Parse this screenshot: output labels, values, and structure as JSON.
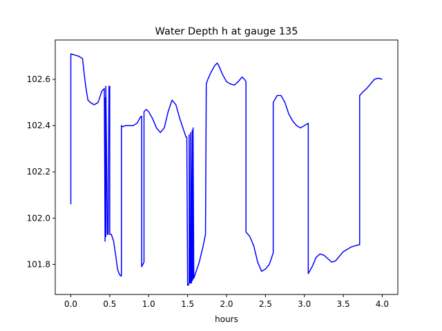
{
  "chart_data": {
    "type": "line",
    "title": "Water Depth h at gauge 135",
    "xlabel": "hours",
    "ylabel": "",
    "xlim": [
      -0.2,
      4.2
    ],
    "ylim": [
      101.67,
      102.77
    ],
    "xticks": [
      0.0,
      0.5,
      1.0,
      1.5,
      2.0,
      2.5,
      3.0,
      3.5,
      4.0
    ],
    "xtick_labels": [
      "0.0",
      "0.5",
      "1.0",
      "1.5",
      "2.0",
      "2.5",
      "3.0",
      "3.5",
      "4.0"
    ],
    "yticks": [
      101.8,
      102.0,
      102.2,
      102.4,
      102.6
    ],
    "ytick_labels": [
      "101.8",
      "102.0",
      "102.2",
      "102.4",
      "102.6"
    ],
    "grid": false,
    "series": [
      {
        "color": "#0000ff",
        "x": [
          0.0,
          0.0,
          0.05,
          0.1,
          0.15,
          0.18,
          0.2,
          0.22,
          0.25,
          0.3,
          0.35,
          0.4,
          0.43,
          0.44,
          0.44,
          0.45,
          0.45,
          0.47,
          0.48,
          0.49,
          0.5,
          0.5,
          0.52,
          0.55,
          0.58,
          0.6,
          0.62,
          0.64,
          0.65,
          0.65,
          0.67,
          0.7,
          0.75,
          0.8,
          0.85,
          0.9,
          0.91,
          0.91,
          0.94,
          0.94,
          0.97,
          1.0,
          1.05,
          1.1,
          1.15,
          1.2,
          1.25,
          1.3,
          1.35,
          1.4,
          1.45,
          1.48,
          1.49,
          1.5,
          1.51,
          1.52,
          1.52,
          1.53,
          1.54,
          1.54,
          1.55,
          1.55,
          1.56,
          1.56,
          1.57,
          1.57,
          1.58,
          1.6,
          1.65,
          1.7,
          1.73,
          1.74,
          1.76,
          1.8,
          1.85,
          1.88,
          1.9,
          1.95,
          2.0,
          2.05,
          2.1,
          2.15,
          2.2,
          2.23,
          2.25,
          2.25,
          2.3,
          2.35,
          2.4,
          2.45,
          2.5,
          2.55,
          2.6,
          2.6,
          2.65,
          2.7,
          2.75,
          2.8,
          2.85,
          2.9,
          2.95,
          3.0,
          3.05,
          3.05,
          3.1,
          3.15,
          3.2,
          3.25,
          3.3,
          3.35,
          3.4,
          3.45,
          3.5,
          3.55,
          3.6,
          3.65,
          3.7,
          3.71,
          3.71,
          3.75,
          3.8,
          3.85,
          3.9,
          3.95,
          4.0
        ],
        "y": [
          102.06,
          102.71,
          102.705,
          102.7,
          102.69,
          102.6,
          102.55,
          102.51,
          102.5,
          102.49,
          102.5,
          102.55,
          102.56,
          101.9,
          102.52,
          101.92,
          102.57,
          101.93,
          101.93,
          102.57,
          102.57,
          101.93,
          101.93,
          101.9,
          101.83,
          101.78,
          101.76,
          101.75,
          101.75,
          102.4,
          102.395,
          102.4,
          102.4,
          102.4,
          102.41,
          102.44,
          102.44,
          101.79,
          101.81,
          102.46,
          102.47,
          102.46,
          102.43,
          102.39,
          102.37,
          102.39,
          102.46,
          102.51,
          102.49,
          102.43,
          102.38,
          102.35,
          102.35,
          101.71,
          101.71,
          101.72,
          102.36,
          101.72,
          101.72,
          102.37,
          101.72,
          101.72,
          102.38,
          101.73,
          101.74,
          102.39,
          101.74,
          101.76,
          101.81,
          101.88,
          101.93,
          102.58,
          102.6,
          102.63,
          102.66,
          102.67,
          102.66,
          102.62,
          102.59,
          102.58,
          102.575,
          102.59,
          102.61,
          102.6,
          102.59,
          101.94,
          101.92,
          101.88,
          101.81,
          101.77,
          101.78,
          101.8,
          101.85,
          102.5,
          102.53,
          102.53,
          102.5,
          102.45,
          102.42,
          102.4,
          102.39,
          102.4,
          102.41,
          101.76,
          101.79,
          101.83,
          101.845,
          101.84,
          101.825,
          101.81,
          101.815,
          101.835,
          101.855,
          101.865,
          101.875,
          101.88,
          101.885,
          101.885,
          102.53,
          102.545,
          102.56,
          102.58,
          102.6,
          102.605,
          102.6
        ]
      }
    ]
  }
}
